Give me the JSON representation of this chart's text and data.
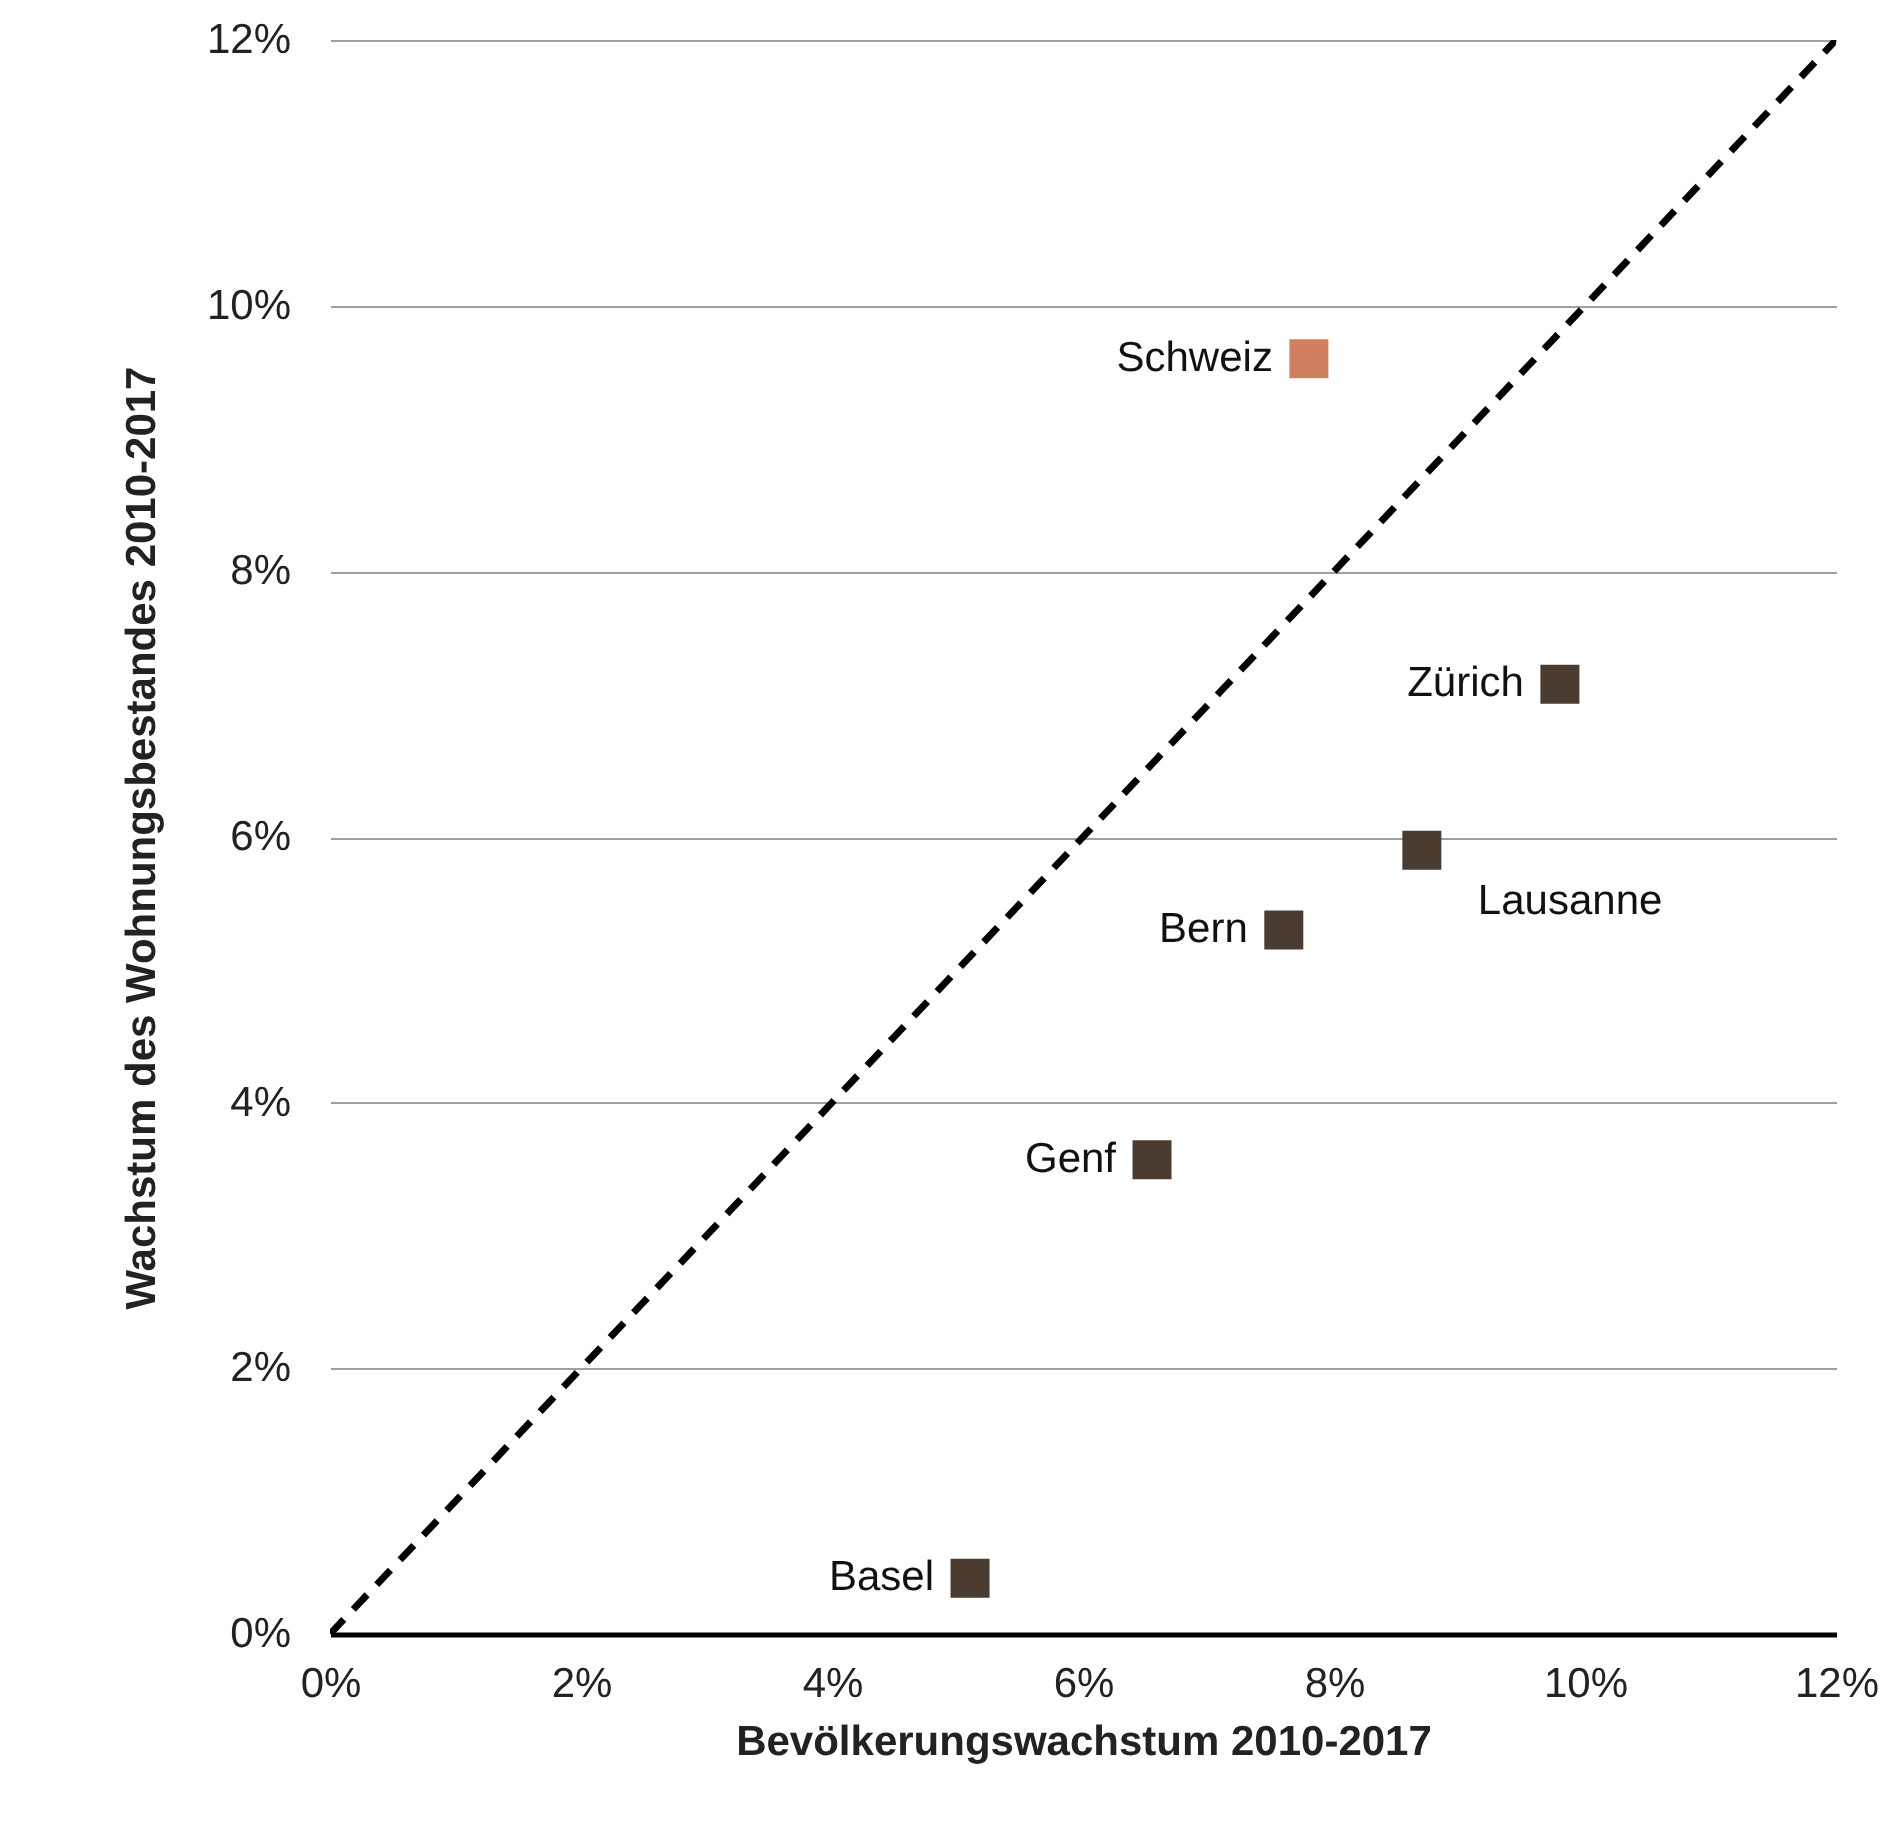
{
  "chart_data": {
    "type": "scatter",
    "xlabel": "Bevölkerungswachstum 2010-2017",
    "ylabel": "Wachstum des Wohnungsbestandes 2010-2017",
    "xlim": [
      0,
      12
    ],
    "ylim": [
      0,
      12
    ],
    "xticks": [
      {
        "value": 0,
        "label": "0%"
      },
      {
        "value": 2,
        "label": "2%"
      },
      {
        "value": 4,
        "label": "4%"
      },
      {
        "value": 6,
        "label": "6%"
      },
      {
        "value": 8,
        "label": "8%"
      },
      {
        "value": 10,
        "label": "10%"
      },
      {
        "value": 12,
        "label": "12%"
      }
    ],
    "yticks": [
      {
        "value": 0,
        "label": "0%"
      },
      {
        "value": 2,
        "label": "2%"
      },
      {
        "value": 4,
        "label": "4%"
      },
      {
        "value": 6,
        "label": "6%"
      },
      {
        "value": 8,
        "label": "8%"
      },
      {
        "value": 10,
        "label": "10%"
      },
      {
        "value": 12,
        "label": "12%"
      }
    ],
    "grid": "y",
    "marker": "square",
    "series": [
      {
        "type": "line",
        "color": "#000000",
        "line_style": "dashed",
        "marker": "none",
        "x": [
          0,
          12
        ],
        "values": [
          0,
          12
        ]
      },
      {
        "name": "Schweiz",
        "color": "#d0805f",
        "x": [
          7.8
        ],
        "values": [
          9.6
        ]
      },
      {
        "name": "Zürich",
        "color": "#4b3c31",
        "x": [
          9.8
        ],
        "values": [
          7.15
        ]
      },
      {
        "name": "Lausanne",
        "color": "#4b3c31",
        "x": [
          8.7
        ],
        "values": [
          5.9
        ]
      },
      {
        "name": "Bern",
        "color": "#4b3c31",
        "x": [
          7.6
        ],
        "values": [
          5.3
        ]
      },
      {
        "name": "Genf",
        "color": "#4b3c31",
        "x": [
          6.55
        ],
        "values": [
          3.57
        ]
      },
      {
        "name": "Basel",
        "color": "#4b3c31",
        "x": [
          5.1
        ],
        "values": [
          0.42
        ]
      }
    ]
  }
}
